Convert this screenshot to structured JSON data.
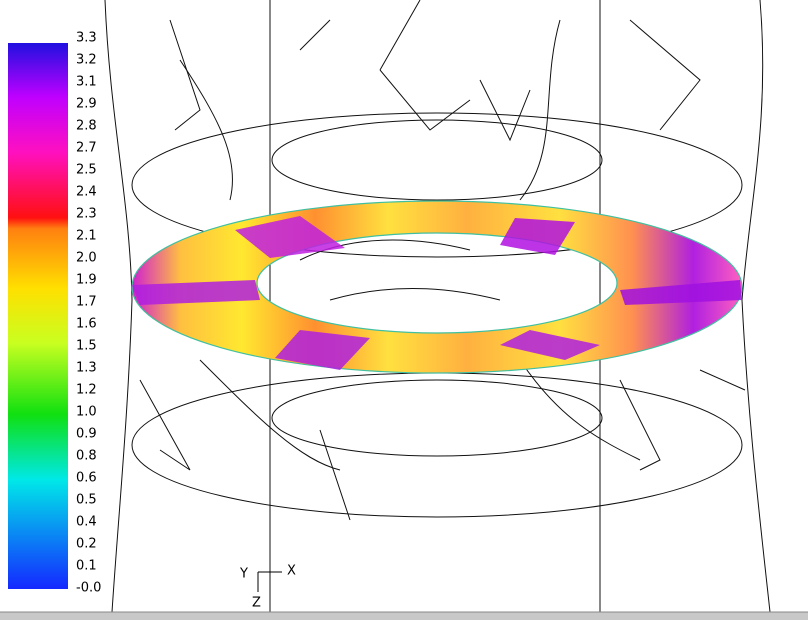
{
  "colorbar": {
    "labels": [
      "3.3",
      "3.2",
      "3.1",
      "2.9",
      "2.8",
      "2.7",
      "2.5",
      "2.4",
      "2.3",
      "2.1",
      "2.0",
      "1.9",
      "1.7",
      "1.6",
      "1.5",
      "1.3",
      "1.2",
      "1.0",
      "0.9",
      "0.8",
      "0.6",
      "0.5",
      "0.4",
      "0.2",
      "0.1",
      "-0.0"
    ]
  },
  "axes_triad": {
    "y": "Y",
    "x": "X",
    "z": "Z"
  }
}
